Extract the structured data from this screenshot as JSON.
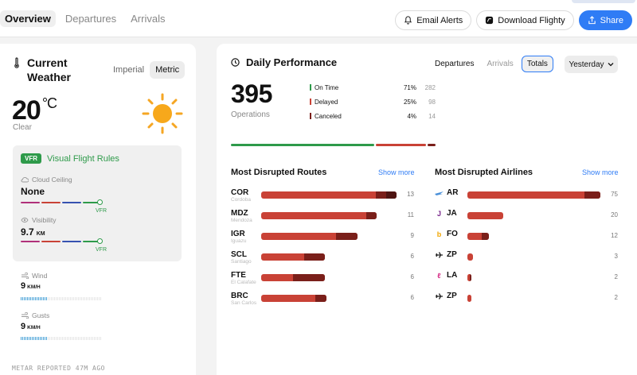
{
  "nav": {
    "tabs": [
      "Overview",
      "Departures",
      "Arrivals"
    ],
    "actions": {
      "email": "Email Alerts",
      "download": "Download Flighty",
      "share": "Share"
    }
  },
  "weather": {
    "title": "Current Weather",
    "units": [
      "Imperial",
      "Metric"
    ],
    "temp": "20",
    "temp_unit": "°C",
    "condition": "Clear",
    "flight_rules_badge": "VFR",
    "flight_rules_label": "Visual Flight Rules",
    "ceiling_label": "Cloud Ceiling",
    "ceiling_value": "None",
    "scale_tag": "VFR",
    "visibility_label": "Visibility",
    "visibility_value": "9.7",
    "visibility_unit": "KM",
    "wind_label": "Wind",
    "wind_value": "9",
    "wind_unit": "KM/H",
    "gusts_label": "Gusts",
    "gusts_value": "9",
    "gusts_unit": "KM/H",
    "metar": "METAR REPORTED 47M AGO"
  },
  "performance": {
    "title": "Daily Performance",
    "tabs": [
      "Departures",
      "Arrivals",
      "Totals"
    ],
    "active_tab": "Totals",
    "period": "Yesterday",
    "operations": "395",
    "operations_label": "Operations",
    "stats": [
      {
        "name": "On Time",
        "pct": "71%",
        "count": "282",
        "color": "#2e9a4a"
      },
      {
        "name": "Delayed",
        "pct": "25%",
        "count": "98",
        "color": "#c94236"
      },
      {
        "name": "Canceled",
        "pct": "4%",
        "count": "14",
        "color": "#7a1f1a"
      }
    ],
    "routes_title": "Most Disrupted Routes",
    "airlines_title": "Most Disrupted Airlines",
    "show_more": "Show more",
    "routes": [
      {
        "code": "COR",
        "city": "Cordoba",
        "value": "13"
      },
      {
        "code": "MDZ",
        "city": "Mendoza",
        "value": "11"
      },
      {
        "code": "IGR",
        "city": "Iguazu",
        "value": "9"
      },
      {
        "code": "SCL",
        "city": "Santiago",
        "value": "6"
      },
      {
        "code": "FTE",
        "city": "El Calafate",
        "value": "6"
      },
      {
        "code": "BRC",
        "city": "San Carlos",
        "value": "6"
      }
    ],
    "airlines": [
      {
        "code": "AR",
        "value": "75",
        "icon": "aerolineas-logo-icon"
      },
      {
        "code": "JA",
        "value": "20",
        "icon": "jetsmart-logo-icon"
      },
      {
        "code": "FO",
        "value": "12",
        "icon": "flybondi-logo-icon"
      },
      {
        "code": "ZP",
        "value": "3",
        "icon": "plane-icon"
      },
      {
        "code": "LA",
        "value": "2",
        "icon": "latam-logo-icon"
      },
      {
        "code": "ZP",
        "value": "2",
        "icon": "plane-icon"
      }
    ]
  }
}
